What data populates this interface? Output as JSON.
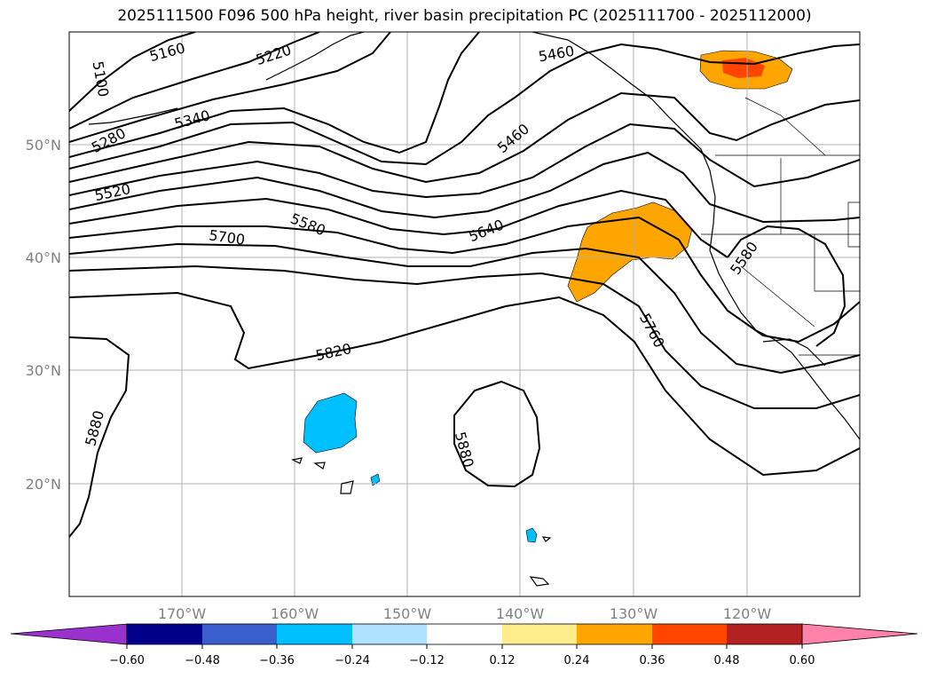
{
  "title": "2025111500 F096 500 hPa height, river basin precipitation PC (2025111700 - 2025112000)",
  "lat_labels": [
    "50°N",
    "40°N",
    "30°N",
    "20°N"
  ],
  "lon_labels": [
    "170°W",
    "160°W",
    "150°W",
    "140°W",
    "130°W",
    "120°W"
  ],
  "contour_labels": [
    "5100",
    "5160",
    "5220",
    "5280",
    "5340",
    "5460",
    "5520",
    "5580",
    "5700",
    "5640",
    "5580",
    "5760",
    "5820",
    "5880",
    "5880",
    "5460"
  ],
  "colorbar": {
    "ticks": [
      "−0.60",
      "−0.48",
      "−0.36",
      "−0.24",
      "−0.12",
      "0.12",
      "0.24",
      "0.36",
      "0.48",
      "0.60"
    ],
    "colors": [
      "#9932cc",
      "#00008b",
      "#3a5fcd",
      "#00bfff",
      "#b0e2ff",
      "#ffffff",
      "#ffec8b",
      "#ffa500",
      "#ff4500",
      "#b22222",
      "#ff82ab",
      "#ff82ab"
    ]
  },
  "map_data": {
    "extent_lon": [
      -180,
      -110
    ],
    "extent_lat": [
      10,
      60
    ],
    "precip_regions": [
      {
        "name": "northern-rockies",
        "pc": 0.36
      },
      {
        "name": "northern-rockies-core",
        "pc": 0.48
      },
      {
        "name": "offshore-pacific-northwest",
        "pc": 0.36
      },
      {
        "name": "hawaii-region",
        "pc": -0.24
      },
      {
        "name": "small-island-a",
        "pc": -0.24
      },
      {
        "name": "small-island-b",
        "pc": -0.24
      }
    ]
  }
}
